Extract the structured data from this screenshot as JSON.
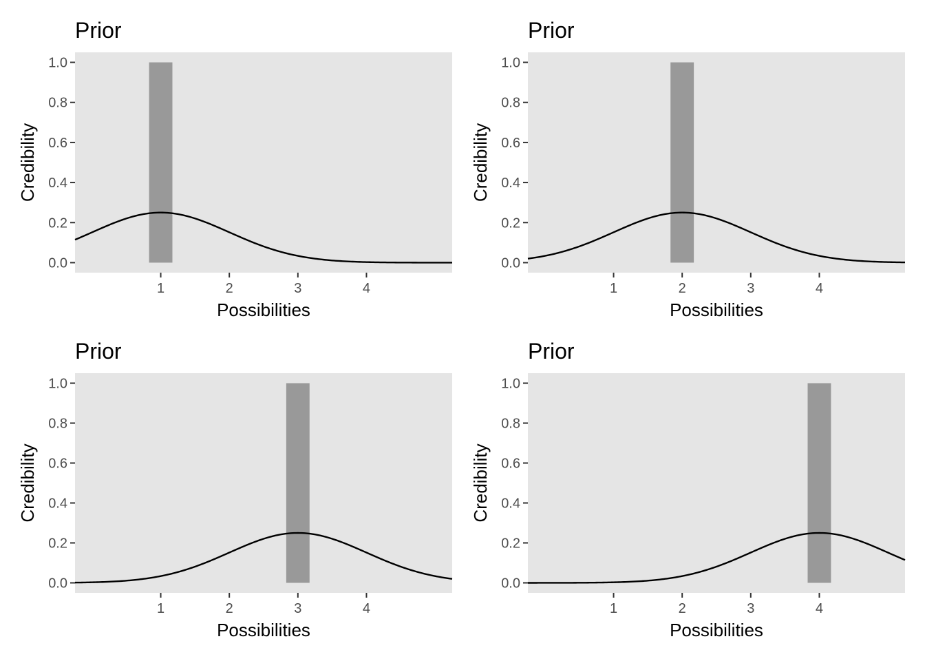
{
  "colors": {
    "panel_bg": "#e5e5e5",
    "bar_fill": "#999999",
    "curve": "#000000"
  },
  "chart_data": [
    {
      "type": "bar",
      "title": "Prior",
      "xlabel": "Possibilities",
      "ylabel": "Credibility",
      "x_ticks": [
        1,
        2,
        3,
        4
      ],
      "y_ticks": [
        "0.0",
        "0.2",
        "0.4",
        "0.6",
        "0.8",
        "1.0"
      ],
      "xlim": [
        -0.25,
        5.25
      ],
      "ylim": [
        -0.05,
        1.05
      ],
      "bars": [
        {
          "x": 1,
          "value": 1.0
        }
      ],
      "curve": {
        "type": "normal-density",
        "mean": 1,
        "sd": 1,
        "scale": 0.25
      },
      "grid": false
    },
    {
      "type": "bar",
      "title": "Prior",
      "xlabel": "Possibilities",
      "ylabel": "Credibility",
      "x_ticks": [
        1,
        2,
        3,
        4
      ],
      "y_ticks": [
        "0.0",
        "0.2",
        "0.4",
        "0.6",
        "0.8",
        "1.0"
      ],
      "xlim": [
        -0.25,
        5.25
      ],
      "ylim": [
        -0.05,
        1.05
      ],
      "bars": [
        {
          "x": 2,
          "value": 1.0
        }
      ],
      "curve": {
        "type": "normal-density",
        "mean": 2,
        "sd": 1,
        "scale": 0.25
      },
      "grid": false
    },
    {
      "type": "bar",
      "title": "Prior",
      "xlabel": "Possibilities",
      "ylabel": "Credibility",
      "x_ticks": [
        1,
        2,
        3,
        4
      ],
      "y_ticks": [
        "0.0",
        "0.2",
        "0.4",
        "0.6",
        "0.8",
        "1.0"
      ],
      "xlim": [
        -0.25,
        5.25
      ],
      "ylim": [
        -0.05,
        1.05
      ],
      "bars": [
        {
          "x": 3,
          "value": 1.0
        }
      ],
      "curve": {
        "type": "normal-density",
        "mean": 3,
        "sd": 1,
        "scale": 0.25
      },
      "grid": false
    },
    {
      "type": "bar",
      "title": "Prior",
      "xlabel": "Possibilities",
      "ylabel": "Credibility",
      "x_ticks": [
        1,
        2,
        3,
        4
      ],
      "y_ticks": [
        "0.0",
        "0.2",
        "0.4",
        "0.6",
        "0.8",
        "1.0"
      ],
      "xlim": [
        -0.25,
        5.25
      ],
      "ylim": [
        -0.05,
        1.05
      ],
      "bars": [
        {
          "x": 4,
          "value": 1.0
        }
      ],
      "curve": {
        "type": "normal-density",
        "mean": 4,
        "sd": 1,
        "scale": 0.25
      },
      "grid": false
    }
  ]
}
